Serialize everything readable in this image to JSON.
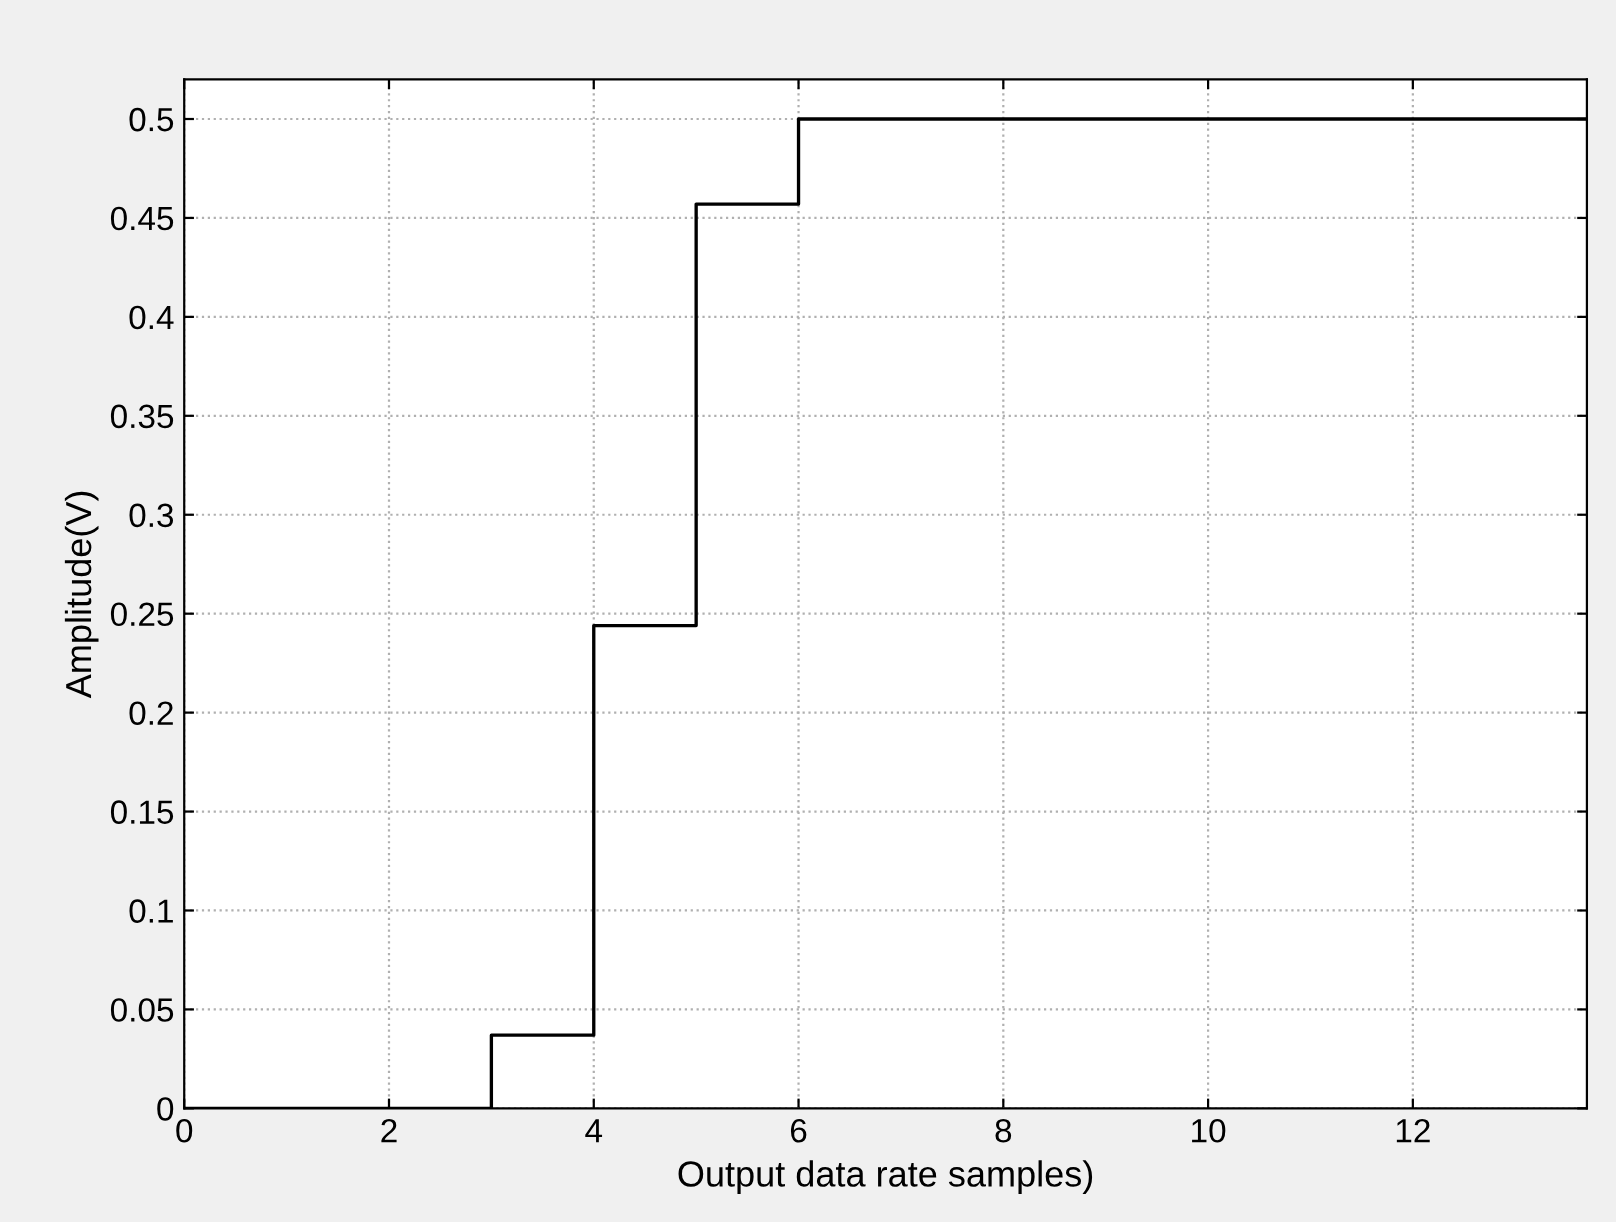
{
  "chart_data": {
    "type": "step",
    "xlabel": "Output data rate samples)",
    "ylabel": "Amplitude(V)",
    "x": [
      0,
      3,
      4,
      5,
      6,
      13.7
    ],
    "series": [
      {
        "color": "#000000",
        "values": [
          0,
          0.037,
          0.244,
          0.457,
          0.5,
          0.5
        ]
      }
    ],
    "xlim": [
      0,
      13.7
    ],
    "xticks": [
      0,
      2,
      4,
      6,
      8,
      10,
      12
    ],
    "ylim": [
      0,
      0.52
    ],
    "yticks": [
      0,
      0.05,
      0.1,
      0.15,
      0.2,
      0.25,
      0.3,
      0.35,
      0.4,
      0.45,
      0.5
    ],
    "grid": true,
    "line_style": "solid",
    "marker": "none"
  }
}
